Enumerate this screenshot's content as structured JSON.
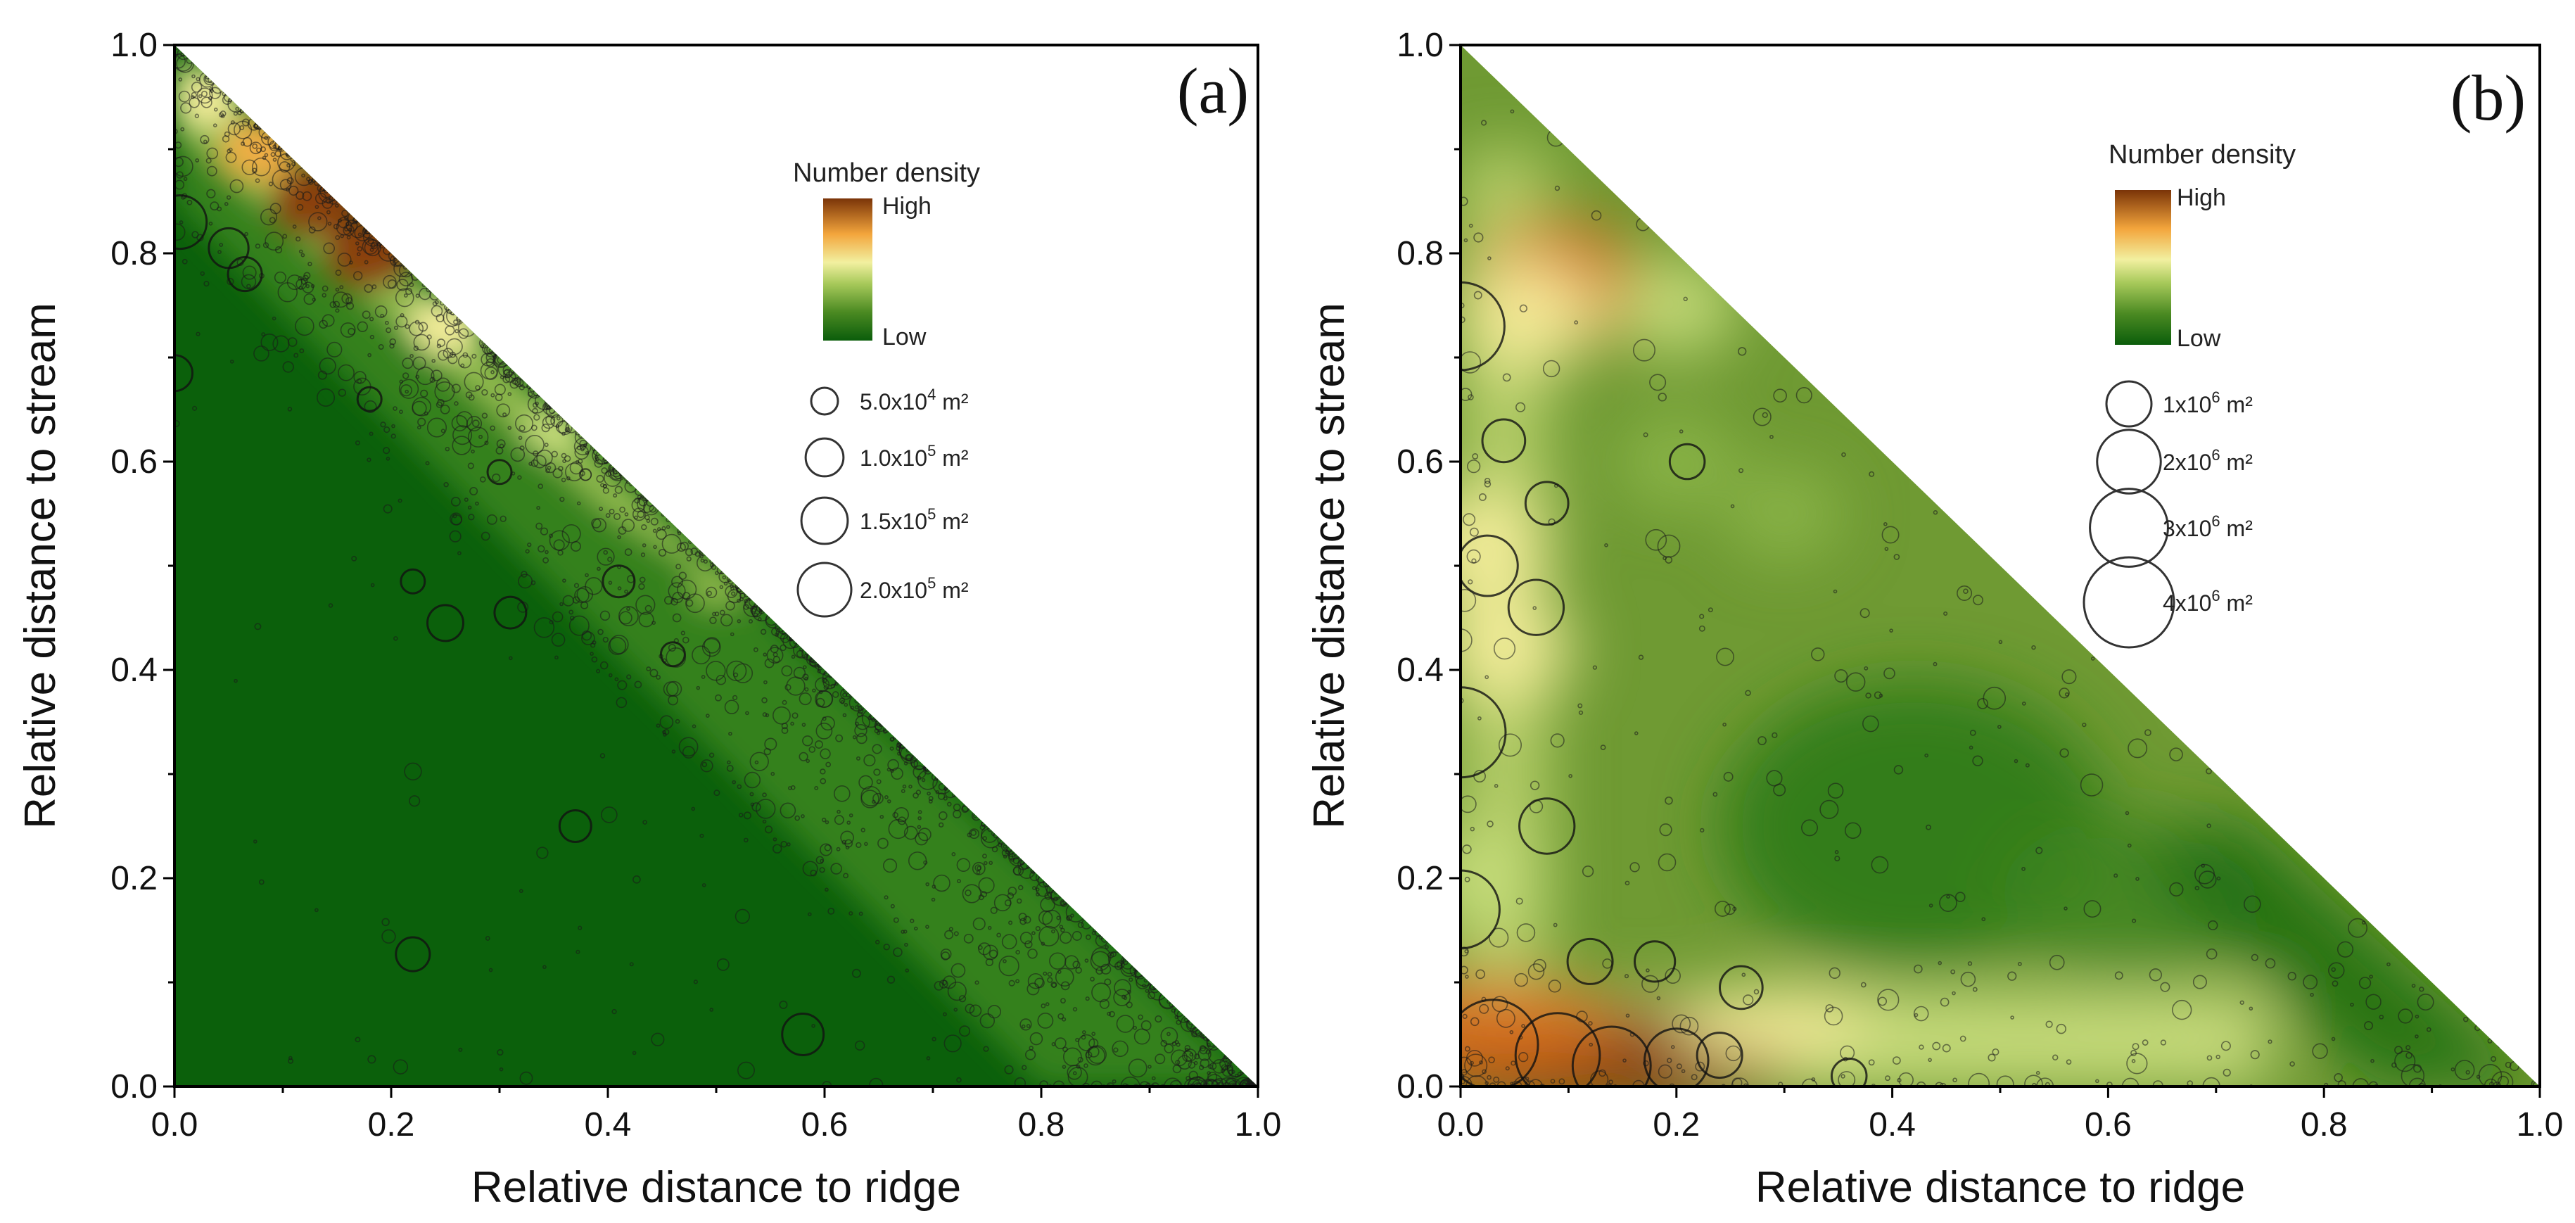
{
  "chart_data": [
    {
      "type": "scatter",
      "panel_label": "(a)",
      "xlabel": "Relative distance to ridge",
      "ylabel": "Relative distance to stream",
      "xlim": [
        0,
        1
      ],
      "ylim": [
        0,
        1
      ],
      "x_ticks": [
        "0.0",
        "0.2",
        "0.4",
        "0.6",
        "0.8",
        "1.0"
      ],
      "y_ticks": [
        "0.0",
        "0.2",
        "0.4",
        "0.6",
        "0.8",
        "1.0"
      ],
      "grid": false,
      "colorbar": {
        "title": "Number density",
        "high": "High",
        "low": "Low"
      },
      "size_legend": [
        {
          "label": "5.0x10",
          "exp": "4",
          "unit": "m²",
          "area": 50000
        },
        {
          "label": "1.0x10",
          "exp": "5",
          "unit": "m²",
          "area": 100000
        },
        {
          "label": "1.5x10",
          "exp": "5",
          "unit": "m²",
          "area": 150000
        },
        {
          "label": "2.0x10",
          "exp": "5",
          "unit": "m²",
          "area": 200000
        }
      ],
      "density_hotspots": [
        {
          "x": 0.13,
          "y": 0.85,
          "level": 1.0
        },
        {
          "x": 0.18,
          "y": 0.8,
          "level": 1.0
        },
        {
          "x": 0.08,
          "y": 0.9,
          "level": 0.75
        },
        {
          "x": 0.25,
          "y": 0.73,
          "level": 0.6
        },
        {
          "x": 0.03,
          "y": 0.95,
          "level": 0.55
        },
        {
          "x": 0.35,
          "y": 0.63,
          "level": 0.35
        },
        {
          "x": 0.5,
          "y": 0.48,
          "level": 0.25
        }
      ],
      "large_points": [
        {
          "x": 0.005,
          "y": 0.83,
          "area": 200000
        },
        {
          "x": 0.05,
          "y": 0.805,
          "area": 110000
        },
        {
          "x": 0.065,
          "y": 0.78,
          "area": 80000
        },
        {
          "x": 0.0,
          "y": 0.685,
          "area": 90000
        },
        {
          "x": 0.41,
          "y": 0.485,
          "area": 70000
        },
        {
          "x": 0.25,
          "y": 0.445,
          "area": 90000
        },
        {
          "x": 0.31,
          "y": 0.455,
          "area": 70000
        },
        {
          "x": 0.37,
          "y": 0.25,
          "area": 70000
        },
        {
          "x": 0.22,
          "y": 0.127,
          "area": 80000
        },
        {
          "x": 0.58,
          "y": 0.05,
          "area": 120000
        },
        {
          "x": 0.3,
          "y": 0.59,
          "area": 40000
        },
        {
          "x": 0.22,
          "y": 0.485,
          "area": 40000
        },
        {
          "x": 0.46,
          "y": 0.415,
          "area": 40000
        },
        {
          "x": 0.18,
          "y": 0.66,
          "area": 40000
        }
      ]
    },
    {
      "type": "scatter",
      "panel_label": "(b)",
      "xlabel": "Relative distance to ridge",
      "ylabel": "Relative distance to stream",
      "xlim": [
        0,
        1
      ],
      "ylim": [
        0,
        1
      ],
      "x_ticks": [
        "0.0",
        "0.2",
        "0.4",
        "0.6",
        "0.8",
        "1.0"
      ],
      "y_ticks": [
        "0.0",
        "0.2",
        "0.4",
        "0.6",
        "0.8",
        "1.0"
      ],
      "grid": false,
      "colorbar": {
        "title": "Number density",
        "high": "High",
        "low": "Low"
      },
      "size_legend": [
        {
          "label": "1x10",
          "exp": "6",
          "unit": "m²",
          "area": 1000000
        },
        {
          "label": "2x10",
          "exp": "6",
          "unit": "m²",
          "area": 2000000
        },
        {
          "label": "3x10",
          "exp": "6",
          "unit": "m²",
          "area": 3000000
        },
        {
          "label": "4x10",
          "exp": "6",
          "unit": "m²",
          "area": 4000000
        }
      ],
      "density_hotspots": [
        {
          "x": 0.09,
          "y": 0.77,
          "level": 0.85
        },
        {
          "x": 0.06,
          "y": 0.74,
          "level": 0.55
        },
        {
          "x": 0.02,
          "y": 0.52,
          "level": 0.55
        },
        {
          "x": 0.04,
          "y": 0.42,
          "level": 0.5
        },
        {
          "x": 0.08,
          "y": 0.025,
          "level": 1.0
        },
        {
          "x": 0.18,
          "y": 0.03,
          "level": 1.0
        },
        {
          "x": 0.02,
          "y": 0.06,
          "level": 0.9
        },
        {
          "x": 0.3,
          "y": 0.06,
          "level": 0.5
        },
        {
          "x": 0.45,
          "y": 0.04,
          "level": 0.45
        },
        {
          "x": 0.6,
          "y": 0.04,
          "level": 0.4
        },
        {
          "x": 0.02,
          "y": 0.2,
          "level": 0.45
        },
        {
          "x": 0.2,
          "y": 0.75,
          "level": 0.35
        },
        {
          "x": 0.2,
          "y": 0.6,
          "level": 0.3
        },
        {
          "x": 0.3,
          "y": 0.55,
          "level": 0.25
        }
      ],
      "large_points": [
        {
          "x": 0.0,
          "y": 0.73,
          "area": 3800000
        },
        {
          "x": 0.0,
          "y": 0.34,
          "area": 4000000
        },
        {
          "x": 0.0,
          "y": 0.17,
          "area": 3000000
        },
        {
          "x": 0.025,
          "y": 0.5,
          "area": 1800000
        },
        {
          "x": 0.07,
          "y": 0.46,
          "area": 1500000
        },
        {
          "x": 0.08,
          "y": 0.56,
          "area": 900000
        },
        {
          "x": 0.04,
          "y": 0.62,
          "area": 900000
        },
        {
          "x": 0.08,
          "y": 0.25,
          "area": 1500000
        },
        {
          "x": 0.03,
          "y": 0.04,
          "area": 4000000
        },
        {
          "x": 0.09,
          "y": 0.03,
          "area": 3500000
        },
        {
          "x": 0.14,
          "y": 0.02,
          "area": 3000000
        },
        {
          "x": 0.2,
          "y": 0.025,
          "area": 2000000
        },
        {
          "x": 0.26,
          "y": 0.095,
          "area": 900000
        },
        {
          "x": 0.18,
          "y": 0.12,
          "area": 800000
        },
        {
          "x": 0.12,
          "y": 0.12,
          "area": 1000000
        },
        {
          "x": 0.21,
          "y": 0.6,
          "area": 600000
        },
        {
          "x": 0.36,
          "y": 0.01,
          "area": 600000
        },
        {
          "x": 0.24,
          "y": 0.03,
          "area": 1000000
        }
      ]
    }
  ]
}
